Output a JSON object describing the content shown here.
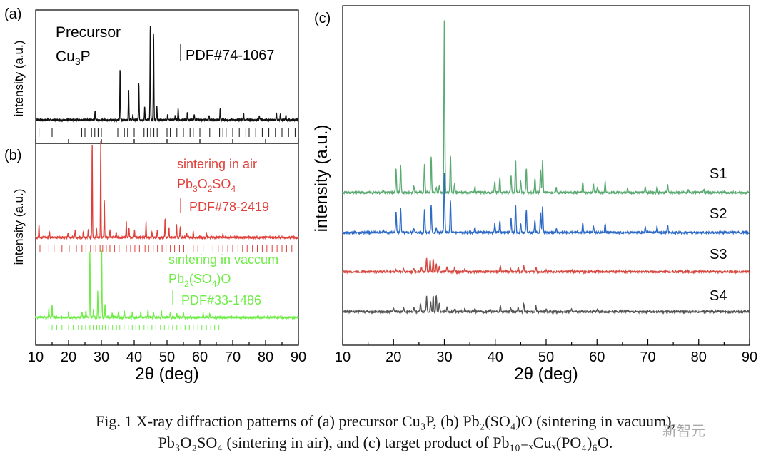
{
  "caption": {
    "line1": "Fig. 1 X-ray diffraction patterns of (a) precursor Cu₃P, (b) Pb₂(SO₄)O (sintering in vacuum),",
    "line2": "Pb₃O₂SO₄ (sintering in air), and (c) target product of Pb₁₀₋ₓCuₓ(PO₄)₆O."
  },
  "watermark": "新智元",
  "chart_data": [
    {
      "type": "line",
      "panel": "(a)",
      "ylabel": "intensity (a.u.)",
      "xlim": [
        10,
        90
      ],
      "series": [
        {
          "name": "Precursor Cu₃P",
          "color": "#111111",
          "peaks": [
            [
              28.1,
              0.1
            ],
            [
              35.7,
              0.52
            ],
            [
              38.3,
              0.32
            ],
            [
              39.6,
              0.05
            ],
            [
              41.4,
              0.39
            ],
            [
              43.2,
              0.13
            ],
            [
              44.9,
              1.0
            ],
            [
              45.9,
              0.91
            ],
            [
              46.9,
              0.14
            ],
            [
              50.2,
              0.06
            ],
            [
              52.5,
              0.04
            ],
            [
              53.4,
              0.12
            ],
            [
              56.2,
              0.07
            ],
            [
              58.3,
              0.06
            ],
            [
              62.8,
              0.04
            ],
            [
              66.2,
              0.12
            ],
            [
              73.3,
              0.07
            ],
            [
              78.1,
              0.05
            ],
            [
              83.3,
              0.08
            ],
            [
              84.5,
              0.06
            ],
            [
              86.2,
              0.05
            ]
          ]
        }
      ],
      "reference": {
        "label": "PDF#74-1067",
        "color": "#111111",
        "lines": [
          11,
          15,
          24,
          25,
          27,
          28,
          29,
          30,
          35,
          37,
          38,
          40,
          43,
          44,
          45,
          46,
          47,
          50,
          51,
          53,
          55,
          57,
          58,
          60,
          63,
          66,
          67,
          68,
          70,
          72,
          74,
          75,
          77,
          79,
          81,
          83,
          85,
          87,
          89
        ]
      }
    },
    {
      "type": "line",
      "panel": "(b)",
      "ylabel": "intensity (a.u.)",
      "xlabel": "2θ (deg)",
      "xlim": [
        10,
        90
      ],
      "xticks": [
        10,
        20,
        30,
        40,
        50,
        60,
        70,
        80,
        90
      ],
      "series": [
        {
          "name": "sintering in air",
          "phase": "Pb₃O₂SO₄",
          "color": "#e0403a",
          "peaks": [
            [
              11.0,
              0.13
            ],
            [
              14.2,
              0.06
            ],
            [
              19.8,
              0.05
            ],
            [
              22.0,
              0.07
            ],
            [
              24.5,
              0.06
            ],
            [
              26.0,
              0.09
            ],
            [
              27.2,
              1.0
            ],
            [
              28.5,
              0.1
            ],
            [
              29.8,
              1.0
            ],
            [
              30.9,
              0.4
            ],
            [
              32.6,
              0.08
            ],
            [
              34.5,
              0.06
            ],
            [
              37.6,
              0.17
            ],
            [
              38.4,
              0.11
            ],
            [
              40.1,
              0.07
            ],
            [
              43.6,
              0.16
            ],
            [
              45.4,
              0.06
            ],
            [
              47.0,
              0.07
            ],
            [
              49.4,
              0.2
            ],
            [
              50.6,
              0.1
            ],
            [
              52.9,
              0.15
            ],
            [
              54.0,
              0.11
            ],
            [
              56.0,
              0.05
            ],
            [
              58.0,
              0.06
            ],
            [
              62.0,
              0.05
            ],
            [
              67.0,
              0.04
            ]
          ]
        },
        {
          "name": "sintering in vaccum",
          "phase": "Pb₂(SO₄)O",
          "color": "#6ded45",
          "peaks": [
            [
              14.0,
              0.13
            ],
            [
              15.0,
              0.19
            ],
            [
              20.0,
              0.09
            ],
            [
              24.1,
              0.08
            ],
            [
              25.3,
              0.11
            ],
            [
              26.5,
              1.0
            ],
            [
              27.6,
              0.12
            ],
            [
              28.9,
              0.4
            ],
            [
              30.1,
              1.0
            ],
            [
              31.1,
              0.2
            ],
            [
              33.3,
              0.07
            ],
            [
              35.2,
              0.09
            ],
            [
              37.0,
              0.1
            ],
            [
              39.4,
              0.08
            ],
            [
              42.0,
              0.09
            ],
            [
              44.2,
              0.12
            ],
            [
              45.9,
              0.08
            ],
            [
              48.3,
              0.1
            ],
            [
              51.0,
              0.08
            ],
            [
              53.0,
              0.06
            ],
            [
              55.0,
              0.07
            ],
            [
              61.0,
              0.06
            ],
            [
              63.0,
              0.05
            ]
          ]
        }
      ],
      "references": [
        {
          "label": "PDF#78-2419",
          "color": "#e0403a",
          "lines": [
            11.3,
            14,
            15.6,
            18,
            20.2,
            22.4,
            24.1,
            25.3,
            26.7,
            27.7,
            28.3,
            29.6,
            30.4,
            31.5,
            32.6,
            34,
            35.4,
            37.6,
            38.9,
            40.2,
            41.6,
            43.3,
            44.4,
            45.8,
            47.1,
            48.5,
            49.7,
            51,
            52.3,
            53.8,
            55.1,
            56.4,
            58,
            59.4,
            61,
            62.5,
            64,
            65.6,
            67,
            68.5,
            70,
            71.6,
            73,
            74.4,
            76,
            77.5,
            79,
            80.4,
            82,
            83.5,
            85,
            86.4,
            88
          ]
        },
        {
          "label": "PDF#33-1486",
          "color": "#6ded45",
          "lines": [
            14,
            15,
            16.4,
            18,
            20,
            21.4,
            23,
            24.1,
            25.2,
            26.5,
            27.5,
            28.6,
            29.4,
            30.3,
            31.2,
            32.2,
            33.4,
            34.6,
            35.6,
            36.9,
            38.2,
            39.4,
            40.5,
            41.6,
            43,
            44.2,
            45.4,
            46.6,
            48,
            49.2,
            50.4,
            51.7,
            53,
            54.2,
            55.5,
            56.8,
            58,
            59.4,
            60.6,
            62,
            63.3,
            64.5,
            65.8
          ]
        }
      ]
    },
    {
      "type": "line",
      "panel": "(c)",
      "ylabel": "intensity (a.u.)",
      "xlabel": "2θ (deg)",
      "xlim": [
        10,
        90
      ],
      "xticks": [
        10,
        20,
        30,
        40,
        50,
        60,
        70,
        80,
        90
      ],
      "series": [
        {
          "name": "S1",
          "color": "#5aaa72",
          "peaks": [
            [
              18.0,
              0.05
            ],
            [
              20.5,
              0.4
            ],
            [
              21.4,
              0.45
            ],
            [
              24.0,
              0.1
            ],
            [
              26.1,
              0.5
            ],
            [
              27.4,
              0.62
            ],
            [
              28.4,
              0.1
            ],
            [
              29.0,
              0.12
            ],
            [
              30.0,
              3.0
            ],
            [
              31.2,
              0.65
            ],
            [
              32.0,
              0.15
            ],
            [
              36.0,
              0.1
            ],
            [
              39.9,
              0.18
            ],
            [
              40.9,
              0.25
            ],
            [
              43.1,
              0.3
            ],
            [
              44.0,
              0.56
            ],
            [
              45.0,
              0.2
            ],
            [
              46.1,
              0.42
            ],
            [
              47.8,
              0.25
            ],
            [
              48.9,
              0.4
            ],
            [
              49.3,
              0.55
            ],
            [
              52.0,
              0.08
            ],
            [
              57.2,
              0.18
            ],
            [
              59.3,
              0.15
            ],
            [
              60.1,
              0.1
            ],
            [
              61.6,
              0.18
            ],
            [
              66.0,
              0.06
            ],
            [
              69.5,
              0.1
            ],
            [
              71.8,
              0.12
            ],
            [
              73.9,
              0.14
            ],
            [
              78.0,
              0.06
            ],
            [
              81.0,
              0.05
            ]
          ]
        },
        {
          "name": "S2",
          "color": "#2e6bc6",
          "peaks": [
            [
              18.0,
              0.04
            ],
            [
              20.5,
              0.35
            ],
            [
              21.4,
              0.42
            ],
            [
              24.0,
              0.08
            ],
            [
              26.1,
              0.4
            ],
            [
              27.4,
              0.48
            ],
            [
              28.4,
              0.08
            ],
            [
              30.0,
              1.05
            ],
            [
              31.2,
              0.55
            ],
            [
              36.0,
              0.08
            ],
            [
              39.9,
              0.15
            ],
            [
              40.9,
              0.2
            ],
            [
              43.1,
              0.25
            ],
            [
              44.0,
              0.48
            ],
            [
              45.0,
              0.15
            ],
            [
              46.1,
              0.38
            ],
            [
              47.8,
              0.2
            ],
            [
              48.9,
              0.35
            ],
            [
              49.3,
              0.45
            ],
            [
              52.0,
              0.06
            ],
            [
              57.2,
              0.15
            ],
            [
              59.3,
              0.12
            ],
            [
              61.6,
              0.15
            ],
            [
              69.5,
              0.08
            ],
            [
              71.8,
              0.1
            ],
            [
              73.9,
              0.12
            ]
          ]
        },
        {
          "name": "S3",
          "color": "#d64a43",
          "peaks": [
            [
              20.5,
              0.04
            ],
            [
              22.0,
              0.05
            ],
            [
              24.0,
              0.06
            ],
            [
              25.5,
              0.07
            ],
            [
              26.5,
              0.24
            ],
            [
              27.2,
              0.2
            ],
            [
              27.8,
              0.22
            ],
            [
              28.4,
              0.15
            ],
            [
              29.0,
              0.1
            ],
            [
              30.5,
              0.08
            ],
            [
              32.0,
              0.06
            ],
            [
              34.0,
              0.04
            ],
            [
              41.0,
              0.1
            ],
            [
              43.0,
              0.05
            ],
            [
              44.5,
              0.07
            ],
            [
              45.6,
              0.12
            ],
            [
              48.0,
              0.07
            ],
            [
              50.0,
              0.04
            ],
            [
              55.0,
              0.03
            ],
            [
              60.0,
              0.03
            ]
          ]
        },
        {
          "name": "S4",
          "color": "#555555",
          "peaks": [
            [
              20.0,
              0.06
            ],
            [
              22.0,
              0.05
            ],
            [
              24.0,
              0.07
            ],
            [
              25.3,
              0.16
            ],
            [
              26.5,
              0.26
            ],
            [
              27.3,
              0.18
            ],
            [
              27.8,
              0.28
            ],
            [
              28.4,
              0.3
            ],
            [
              29.0,
              0.14
            ],
            [
              30.5,
              0.08
            ],
            [
              32.0,
              0.06
            ],
            [
              34.0,
              0.05
            ],
            [
              36.0,
              0.04
            ],
            [
              39.0,
              0.05
            ],
            [
              41.0,
              0.1
            ],
            [
              43.0,
              0.06
            ],
            [
              44.5,
              0.08
            ],
            [
              45.6,
              0.16
            ],
            [
              48.0,
              0.1
            ],
            [
              50.0,
              0.05
            ],
            [
              55.0,
              0.04
            ],
            [
              60.0,
              0.04
            ],
            [
              66.0,
              0.03
            ]
          ]
        }
      ]
    }
  ]
}
